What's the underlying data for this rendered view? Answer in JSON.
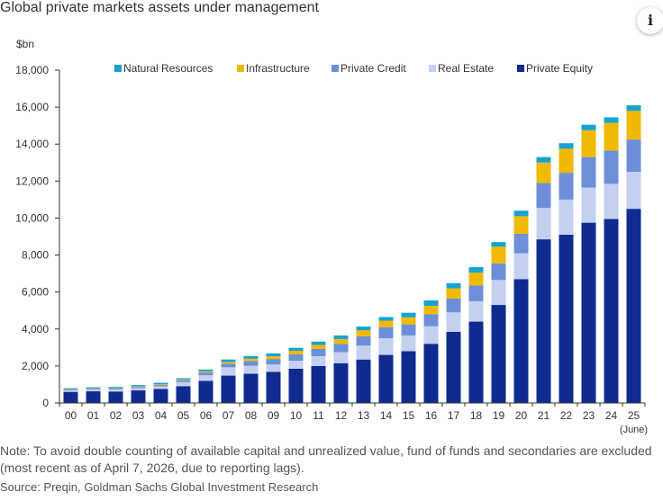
{
  "page": {
    "title": "Global private markets assets under management",
    "info_icon": "i",
    "note_line1": "Note: To avoid double counting of available capital and unrealized value, fund of funds and secondaries are excluded",
    "note_line2": "(most recent as of April 7, 2026, due to reporting lags).",
    "source": "Source: Preqin, Goldman Sachs Global Investment Research"
  },
  "chart_data": {
    "type": "bar",
    "stacked": true,
    "title": "",
    "ylabel": "$bn",
    "xlabel": "",
    "ylim": [
      0,
      18000
    ],
    "yticks": [
      0,
      2000,
      4000,
      6000,
      8000,
      10000,
      12000,
      14000,
      16000,
      18000
    ],
    "ytick_labels": [
      "0",
      "2,000",
      "4,000",
      "6,000",
      "8,000",
      "10,000",
      "12,000",
      "14,000",
      "16,000",
      "18,000"
    ],
    "grid": false,
    "legend_position": "top",
    "categories": [
      "00",
      "01",
      "02",
      "03",
      "04",
      "05",
      "06",
      "07",
      "08",
      "09",
      "10",
      "11",
      "12",
      "13",
      "14",
      "15",
      "16",
      "17",
      "18",
      "19",
      "20",
      "21",
      "22",
      "23",
      "24",
      "25"
    ],
    "category_sublabels": {
      "25": "(June)"
    },
    "series": [
      {
        "name": "Private Equity",
        "color": "#0f2b8f",
        "values": [
          600,
          630,
          620,
          680,
          760,
          900,
          1200,
          1480,
          1580,
          1680,
          1850,
          2000,
          2150,
          2350,
          2600,
          2800,
          3200,
          3850,
          4400,
          5300,
          6700,
          8850,
          9100,
          9750,
          9950,
          10500
        ]
      },
      {
        "name": "Real Estate",
        "color": "#c3d0ef",
        "values": [
          90,
          100,
          110,
          120,
          140,
          230,
          300,
          450,
          430,
          400,
          430,
          530,
          600,
          750,
          900,
          850,
          950,
          1050,
          1100,
          1350,
          1400,
          1700,
          1900,
          1900,
          1900,
          2000
        ]
      },
      {
        "name": "Private Credit",
        "color": "#6c8fd8",
        "values": [
          40,
          45,
          50,
          60,
          70,
          100,
          150,
          200,
          250,
          300,
          350,
          400,
          450,
          500,
          600,
          600,
          650,
          750,
          850,
          900,
          1050,
          1350,
          1450,
          1650,
          1800,
          1750
        ]
      },
      {
        "name": "Infrastructure",
        "color": "#f1b900",
        "values": [
          20,
          25,
          30,
          35,
          40,
          40,
          60,
          90,
          130,
          150,
          190,
          210,
          250,
          330,
          350,
          380,
          450,
          550,
          700,
          900,
          950,
          1100,
          1300,
          1450,
          1500,
          1550
        ]
      },
      {
        "name": "Natural Resources",
        "color": "#19a3cf",
        "values": [
          50,
          50,
          60,
          70,
          80,
          70,
          100,
          130,
          150,
          150,
          160,
          180,
          200,
          200,
          200,
          250,
          300,
          280,
          300,
          250,
          300,
          300,
          300,
          300,
          300,
          300
        ]
      }
    ],
    "legend_order": [
      "Natural Resources",
      "Infrastructure",
      "Private Credit",
      "Real Estate",
      "Private Equity"
    ]
  }
}
